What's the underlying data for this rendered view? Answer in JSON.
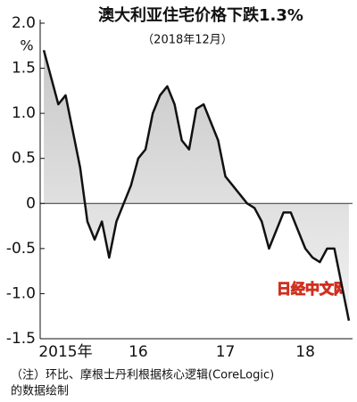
{
  "chart_data": {
    "type": "area",
    "title": "澳大利亚住宅价格下跌1.3%",
    "subtitle": "（2018年12月）",
    "y_unit": "%",
    "note": [
      "（注）环比、摩根士丹利根据核心逻辑(CoreLogic)",
      "的数据绘制"
    ],
    "watermark": "日经中文网",
    "color": "#111111",
    "categories": [
      null,
      null,
      null,
      "2015年",
      null,
      null,
      null,
      null,
      null,
      null,
      null,
      null,
      null,
      "16",
      null,
      null,
      null,
      null,
      null,
      null,
      null,
      null,
      null,
      null,
      null,
      "17",
      null,
      null,
      null,
      null,
      null,
      null,
      null,
      null,
      null,
      null,
      "18",
      null,
      null,
      null,
      null,
      null,
      null
    ],
    "values": [
      1.7,
      1.4,
      1.1,
      1.2,
      0.8,
      0.4,
      -0.2,
      -0.4,
      -0.2,
      -0.6,
      -0.2,
      0.0,
      0.2,
      0.5,
      0.6,
      1.0,
      1.2,
      1.3,
      1.1,
      0.7,
      0.6,
      1.05,
      1.1,
      0.9,
      0.7,
      0.3,
      0.2,
      0.1,
      0.0,
      -0.05,
      -0.2,
      -0.5,
      -0.3,
      -0.1,
      -0.1,
      -0.3,
      -0.5,
      -0.6,
      -0.65,
      -0.5,
      -0.5,
      -0.9,
      -1.3
    ],
    "ylim": [
      -1.5,
      2.0
    ],
    "yticks": [
      {
        "value": 2,
        "label": "2.0"
      },
      1.5,
      {
        "value": 1,
        "label": "1.0"
      },
      0.5,
      0,
      -0.5,
      {
        "value": -1,
        "label": "-1.0"
      },
      -1.5
    ]
  }
}
